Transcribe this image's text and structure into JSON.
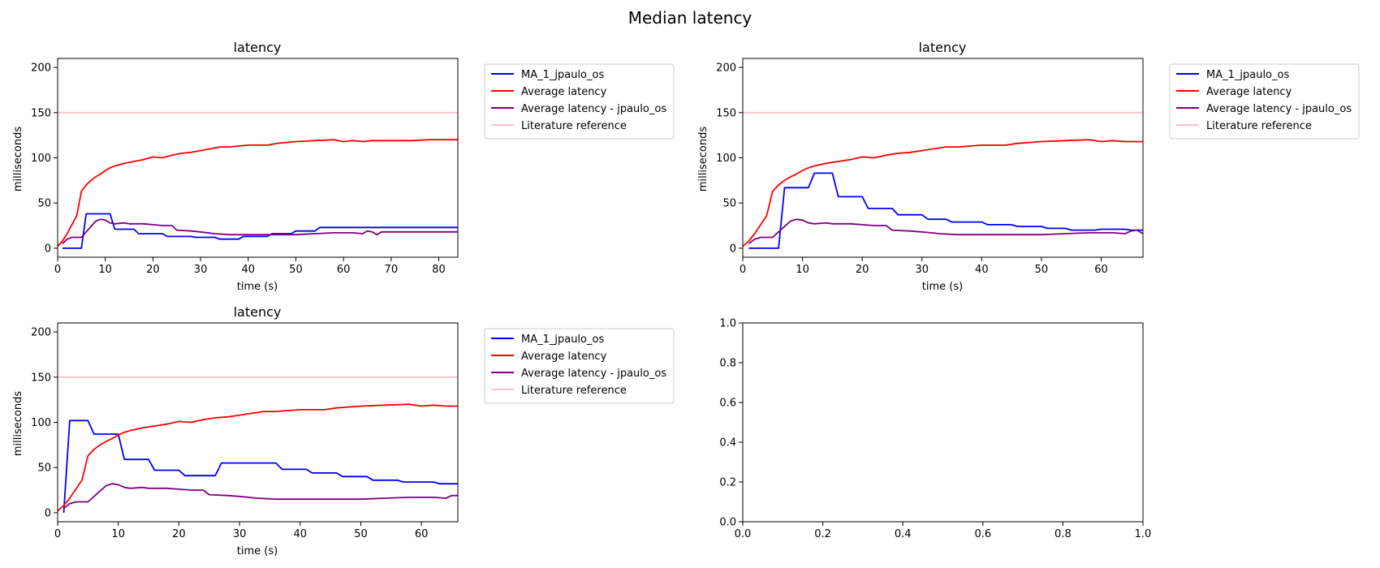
{
  "suptitle": "Median latency",
  "colors": {
    "ma": "#0000ff",
    "avg": "#ff0000",
    "avg_user": "#800080",
    "reference": "#ffc0cb"
  },
  "chart_data": [
    {
      "type": "line",
      "title": "latency",
      "xlabel": "time (s)",
      "ylabel": "milliseconds",
      "xlim": [
        0,
        84
      ],
      "ylim": [
        -10,
        210
      ],
      "xticks": [
        0,
        10,
        20,
        30,
        40,
        50,
        60,
        70,
        80
      ],
      "yticks": [
        0,
        50,
        100,
        150,
        200
      ],
      "legend": "outside-right",
      "series": [
        {
          "name": "MA_1_jpaulo_os",
          "color": "ma",
          "x": [
            1,
            5,
            6,
            11,
            12,
            16,
            17,
            22,
            23,
            28,
            29,
            33,
            34,
            38,
            39,
            44,
            45,
            49,
            50,
            54,
            55,
            84
          ],
          "y": [
            0,
            0,
            38,
            38,
            21,
            21,
            16,
            16,
            13,
            13,
            12,
            12,
            10,
            10,
            13,
            13,
            16,
            16,
            19,
            19,
            23,
            23
          ]
        },
        {
          "name": "Average latency",
          "color": "avg",
          "x": [
            0,
            1,
            2,
            3,
            4,
            5,
            6,
            7,
            8,
            9,
            10,
            11,
            12,
            14,
            16,
            18,
            20,
            22,
            24,
            26,
            28,
            30,
            32,
            34,
            36,
            38,
            40,
            44,
            46,
            50,
            54,
            58,
            60,
            62,
            64,
            66,
            68,
            70,
            74,
            78,
            84
          ],
          "y": [
            2,
            8,
            16,
            26,
            36,
            63,
            70,
            75,
            79,
            82,
            86,
            89,
            91,
            94,
            96,
            98,
            101,
            100,
            103,
            105,
            106,
            108,
            110,
            112,
            112,
            113,
            114,
            114,
            116,
            118,
            119,
            120,
            118,
            119,
            118,
            119,
            119,
            119,
            119,
            120,
            120
          ]
        },
        {
          "name": "Average latency - jpaulo_os",
          "color": "avg_user",
          "x": [
            1,
            2,
            3,
            5,
            6,
            7,
            8,
            9,
            10,
            11,
            12,
            14,
            15,
            16,
            18,
            20,
            22,
            24,
            25,
            28,
            30,
            33,
            36,
            40,
            44,
            48,
            50,
            54,
            58,
            62,
            64,
            65,
            66,
            67,
            68,
            70,
            76,
            84
          ],
          "y": [
            5,
            10,
            12,
            12,
            18,
            24,
            30,
            32,
            31,
            28,
            27,
            28,
            27,
            27,
            27,
            26,
            25,
            25,
            20,
            19,
            18,
            16,
            15,
            15,
            15,
            15,
            15,
            16,
            17,
            17,
            16,
            19,
            18,
            15,
            18,
            18,
            18,
            18
          ]
        },
        {
          "name": "Literature reference",
          "color": "reference",
          "x": [
            0,
            84
          ],
          "y": [
            150,
            150
          ]
        }
      ]
    },
    {
      "type": "line",
      "title": "latency",
      "xlabel": "time (s)",
      "ylabel": "milliseconds",
      "xlim": [
        0,
        67
      ],
      "ylim": [
        -10,
        210
      ],
      "xticks": [
        0,
        10,
        20,
        30,
        40,
        50,
        60
      ],
      "yticks": [
        0,
        50,
        100,
        150,
        200
      ],
      "legend": "outside-right",
      "series": [
        {
          "name": "MA_1_jpaulo_os",
          "color": "ma",
          "x": [
            1,
            6,
            7,
            11,
            12,
            15,
            16,
            20,
            21,
            25,
            26,
            30,
            31,
            34,
            35,
            40,
            41,
            45,
            46,
            50,
            51,
            54,
            55,
            59,
            60,
            64,
            65,
            67
          ],
          "y": [
            0,
            0,
            67,
            67,
            83,
            83,
            57,
            57,
            44,
            44,
            37,
            37,
            32,
            32,
            29,
            29,
            26,
            26,
            24,
            24,
            22,
            22,
            20,
            20,
            21,
            21,
            20,
            20
          ]
        },
        {
          "name": "Average latency",
          "color": "avg",
          "x": [
            0,
            1,
            2,
            3,
            4,
            5,
            6,
            7,
            8,
            9,
            10,
            11,
            12,
            14,
            16,
            18,
            20,
            22,
            24,
            26,
            28,
            30,
            32,
            34,
            36,
            38,
            40,
            44,
            46,
            50,
            54,
            58,
            60,
            62,
            64,
            66,
            67
          ],
          "y": [
            2,
            8,
            16,
            26,
            36,
            63,
            70,
            75,
            79,
            82,
            86,
            89,
            91,
            94,
            96,
            98,
            101,
            100,
            103,
            105,
            106,
            108,
            110,
            112,
            112,
            113,
            114,
            114,
            116,
            118,
            119,
            120,
            118,
            119,
            118,
            118,
            118
          ]
        },
        {
          "name": "Average latency - jpaulo_os",
          "color": "avg_user",
          "x": [
            1,
            2,
            3,
            5,
            6,
            7,
            8,
            9,
            10,
            11,
            12,
            14,
            15,
            16,
            18,
            20,
            22,
            24,
            25,
            28,
            30,
            33,
            36,
            40,
            44,
            48,
            50,
            54,
            58,
            62,
            64,
            65,
            66,
            67
          ],
          "y": [
            5,
            10,
            12,
            12,
            18,
            24,
            30,
            32,
            31,
            28,
            27,
            28,
            27,
            27,
            27,
            26,
            25,
            25,
            20,
            19,
            18,
            16,
            15,
            15,
            15,
            15,
            15,
            16,
            17,
            17,
            16,
            19,
            20,
            16
          ]
        },
        {
          "name": "Literature reference",
          "color": "reference",
          "x": [
            0,
            67
          ],
          "y": [
            150,
            150
          ]
        }
      ]
    },
    {
      "type": "line",
      "title": "latency",
      "xlabel": "time (s)",
      "ylabel": "milliseconds",
      "xlim": [
        0,
        66
      ],
      "ylim": [
        -10,
        210
      ],
      "xticks": [
        0,
        10,
        20,
        30,
        40,
        50,
        60
      ],
      "yticks": [
        0,
        50,
        100,
        150,
        200
      ],
      "legend": "outside-right",
      "series": [
        {
          "name": "MA_1_jpaulo_os",
          "color": "ma",
          "x": [
            1,
            2,
            5,
            6,
            10,
            11,
            15,
            16,
            20,
            21,
            26,
            27,
            36,
            37,
            41,
            42,
            46,
            47,
            51,
            52,
            56,
            57,
            62,
            63,
            66
          ],
          "y": [
            0,
            102,
            102,
            87,
            87,
            59,
            59,
            47,
            47,
            41,
            41,
            55,
            55,
            48,
            48,
            44,
            44,
            40,
            40,
            36,
            36,
            34,
            34,
            32,
            32
          ]
        },
        {
          "name": "Average latency",
          "color": "avg",
          "x": [
            0,
            1,
            2,
            3,
            4,
            5,
            6,
            7,
            8,
            9,
            10,
            11,
            12,
            14,
            16,
            18,
            20,
            22,
            24,
            26,
            28,
            30,
            32,
            34,
            36,
            38,
            40,
            44,
            46,
            50,
            54,
            58,
            60,
            62,
            64,
            66
          ],
          "y": [
            2,
            8,
            16,
            26,
            36,
            63,
            70,
            75,
            79,
            82,
            86,
            89,
            91,
            94,
            96,
            98,
            101,
            100,
            103,
            105,
            106,
            108,
            110,
            112,
            112,
            113,
            114,
            114,
            116,
            118,
            119,
            120,
            118,
            119,
            118,
            118
          ]
        },
        {
          "name": "Average latency - jpaulo_os",
          "color": "avg_user",
          "x": [
            1,
            2,
            3,
            5,
            6,
            7,
            8,
            9,
            10,
            11,
            12,
            14,
            15,
            16,
            18,
            20,
            22,
            24,
            25,
            28,
            30,
            33,
            36,
            40,
            44,
            48,
            50,
            54,
            58,
            62,
            64,
            65,
            66
          ],
          "y": [
            5,
            10,
            12,
            12,
            18,
            24,
            30,
            32,
            31,
            28,
            27,
            28,
            27,
            27,
            27,
            26,
            25,
            25,
            20,
            19,
            18,
            16,
            15,
            15,
            15,
            15,
            15,
            16,
            17,
            17,
            16,
            19,
            19
          ]
        },
        {
          "name": "Literature reference",
          "color": "reference",
          "x": [
            0,
            66
          ],
          "y": [
            150,
            150
          ]
        }
      ]
    },
    {
      "type": "line",
      "title": "",
      "xlabel": "",
      "ylabel": "",
      "xlim": [
        0,
        1
      ],
      "ylim": [
        0,
        1
      ],
      "xticks": [
        0.0,
        0.2,
        0.4,
        0.6,
        0.8,
        1.0
      ],
      "yticks": [
        0.0,
        0.2,
        0.4,
        0.6,
        0.8,
        1.0
      ],
      "legend": "none",
      "series": []
    }
  ]
}
